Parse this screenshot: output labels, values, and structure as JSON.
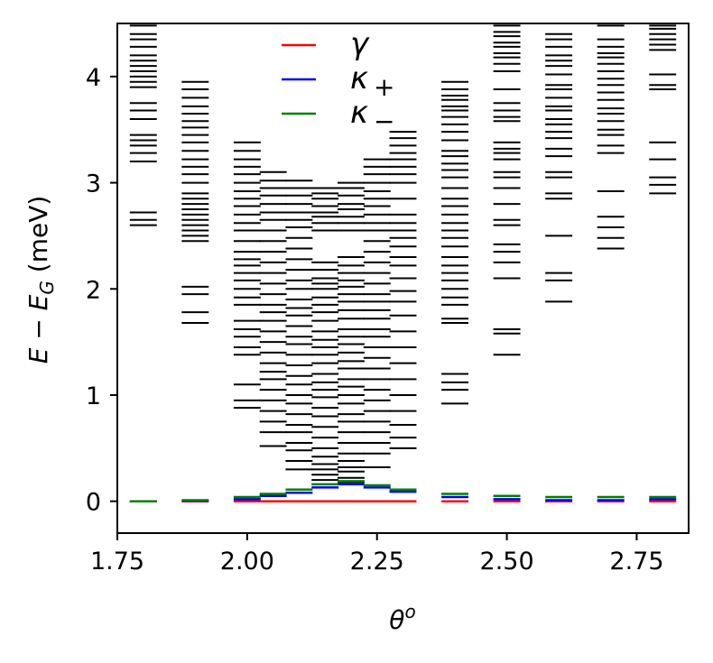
{
  "chart_data": {
    "type": "line",
    "title": "",
    "xlabel": {
      "main": "θ",
      "sup": "o"
    },
    "ylabel": {
      "E": "E",
      "minus": " − ",
      "EG": "E",
      "sub": "G",
      "unit": " (meV)"
    },
    "xlim": [
      1.75,
      2.85
    ],
    "ylim": [
      -0.3,
      4.5
    ],
    "xticks": [
      "1.75",
      "2.00",
      "2.25",
      "2.50",
      "2.75"
    ],
    "xtick_values": [
      1.75,
      2.0,
      2.25,
      2.5,
      2.75
    ],
    "yticks": [
      "0",
      "1",
      "2",
      "3",
      "4"
    ],
    "ytick_values": [
      0,
      1,
      2,
      3,
      4
    ],
    "grid": false,
    "legend_position": "top-center",
    "legend": [
      {
        "name": "γ",
        "sub": "",
        "color": "#ff0000"
      },
      {
        "name": "κ",
        "sub": "+",
        "color": "#0000ff"
      },
      {
        "name": "κ",
        "sub": "−",
        "color": "#008000"
      }
    ],
    "spectrum_color": "#000000",
    "spectrum": [
      {
        "theta": 1.8,
        "energies": [
          2.6,
          2.65,
          2.72,
          3.2,
          3.28,
          3.35,
          3.4,
          3.45,
          3.6,
          3.68,
          3.75,
          3.9,
          3.95,
          4.0,
          4.05,
          4.1,
          4.15,
          4.2,
          4.28,
          4.35,
          4.4,
          4.48
        ]
      },
      {
        "theta": 1.9,
        "energies": [
          1.68,
          1.78,
          1.95,
          2.02,
          2.45,
          2.5,
          2.55,
          2.6,
          2.65,
          2.7,
          2.75,
          2.8,
          2.85,
          2.9,
          3.0,
          3.08,
          3.15,
          3.22,
          3.3,
          3.38,
          3.45,
          3.52,
          3.58,
          3.65,
          3.72,
          3.8,
          3.88,
          3.95
        ]
      },
      {
        "theta": 2.0,
        "energies": [
          0.88,
          0.95,
          1.1,
          1.38,
          1.45,
          1.55,
          1.62,
          1.7,
          1.85,
          1.92,
          2.0,
          2.08,
          2.15,
          2.22,
          2.28,
          2.35,
          2.45,
          2.55,
          2.62,
          2.7,
          2.78,
          2.85,
          2.92,
          3.0,
          3.08,
          3.15,
          3.22,
          3.3,
          3.38
        ]
      },
      {
        "theta": 2.05,
        "energies": [
          0.52,
          0.65,
          0.75,
          0.85,
          0.95,
          1.05,
          1.15,
          1.22,
          1.3,
          1.4,
          1.5,
          1.6,
          1.7,
          1.78,
          1.85,
          1.95,
          2.05,
          2.15,
          2.25,
          2.35,
          2.45,
          2.55,
          2.65,
          2.72,
          2.8,
          2.88,
          2.95,
          3.02,
          3.1
        ]
      },
      {
        "theta": 2.1,
        "energies": [
          0.3,
          0.38,
          0.48,
          0.55,
          0.65,
          0.72,
          0.82,
          0.92,
          1.0,
          1.1,
          1.18,
          1.28,
          1.38,
          1.48,
          1.55,
          1.65,
          1.75,
          1.82,
          1.9,
          2.0,
          2.08,
          2.18,
          2.28,
          2.38,
          2.48,
          2.58,
          2.65,
          2.72,
          2.8,
          2.88,
          2.95,
          3.02
        ]
      },
      {
        "theta": 2.15,
        "energies": [
          0.2,
          0.25,
          0.3,
          0.35,
          0.42,
          0.5,
          0.6,
          0.7,
          0.8,
          0.88,
          0.98,
          1.05,
          1.12,
          1.2,
          1.3,
          1.38,
          1.45,
          1.52,
          1.6,
          1.7,
          1.78,
          1.85,
          1.92,
          2.0,
          2.05,
          2.1,
          2.18,
          2.25,
          2.55,
          2.62,
          2.68,
          2.72,
          2.78,
          2.85,
          2.9,
          2.95
        ]
      },
      {
        "theta": 2.2,
        "energies": [
          0.18,
          0.22,
          0.28,
          0.32,
          0.38,
          0.45,
          0.55,
          0.65,
          0.75,
          0.82,
          0.92,
          1.0,
          1.08,
          1.15,
          1.25,
          1.32,
          1.4,
          1.48,
          1.55,
          1.62,
          1.72,
          1.8,
          1.88,
          1.95,
          2.02,
          2.08,
          2.15,
          2.22,
          2.3,
          2.55,
          2.62,
          2.68,
          2.75,
          2.8,
          2.88,
          2.95,
          3.0
        ]
      },
      {
        "theta": 2.25,
        "energies": [
          0.32,
          0.45,
          0.55,
          0.65,
          0.75,
          0.85,
          0.95,
          1.05,
          1.15,
          1.25,
          1.35,
          1.45,
          1.55,
          1.62,
          1.72,
          1.8,
          1.88,
          1.95,
          2.05,
          2.15,
          2.25,
          2.35,
          2.45,
          2.55,
          2.62,
          2.7,
          2.78,
          2.85,
          2.92,
          3.0,
          3.08,
          3.15,
          3.22
        ]
      },
      {
        "theta": 2.3,
        "energies": [
          0.5,
          0.6,
          0.72,
          0.85,
          1.0,
          1.15,
          1.3,
          1.45,
          1.6,
          1.75,
          1.88,
          1.98,
          2.1,
          2.22,
          2.3,
          2.4,
          2.48,
          2.55,
          2.62,
          2.7,
          2.85,
          3.0,
          3.08,
          3.15,
          3.22,
          3.28,
          3.35,
          3.42,
          3.48
        ]
      },
      {
        "theta": 2.4,
        "energies": [
          0.92,
          1.05,
          1.12,
          1.2,
          1.68,
          1.72,
          1.85,
          1.92,
          2.0,
          2.08,
          2.15,
          2.22,
          2.3,
          2.4,
          2.48,
          2.55,
          2.62,
          2.7,
          2.78,
          2.85,
          2.95,
          3.05,
          3.12,
          3.18,
          3.25,
          3.3,
          3.4,
          3.48,
          3.55,
          3.62,
          3.68,
          3.72,
          3.78,
          3.82,
          3.88,
          3.95
        ]
      },
      {
        "theta": 2.5,
        "energies": [
          1.38,
          1.58,
          1.62,
          2.1,
          2.25,
          2.35,
          2.42,
          2.6,
          2.65,
          2.8,
          2.95,
          3.05,
          3.1,
          3.22,
          3.28,
          3.32,
          3.38,
          3.58,
          3.62,
          3.68,
          3.75,
          3.88,
          4.05,
          4.12,
          4.18,
          4.22,
          4.28,
          4.32,
          4.38,
          4.42,
          4.48
        ]
      },
      {
        "theta": 2.6,
        "energies": [
          1.88,
          2.08,
          2.15,
          2.5,
          2.85,
          2.9,
          3.05,
          3.1,
          3.25,
          3.32,
          3.42,
          3.48,
          3.55,
          3.6,
          3.68,
          3.72,
          3.8,
          3.88,
          3.92,
          4.02,
          4.1,
          4.15,
          4.2,
          4.28,
          4.35,
          4.4
        ]
      },
      {
        "theta": 2.7,
        "energies": [
          2.38,
          2.48,
          2.58,
          2.68,
          2.92,
          3.28,
          3.35,
          3.45,
          3.5,
          3.58,
          3.65,
          3.7,
          3.78,
          3.85,
          3.92,
          3.98,
          4.05,
          4.12,
          4.18,
          4.22,
          4.28,
          4.35,
          4.48
        ]
      },
      {
        "theta": 2.8,
        "energies": [
          2.9,
          2.98,
          3.05,
          3.22,
          3.38,
          3.88,
          3.92,
          4.02,
          4.25,
          4.3,
          4.35,
          4.4,
          4.45,
          4.48
        ]
      }
    ],
    "series": [
      {
        "name": "γ",
        "color": "#ff0000",
        "segments": [
          {
            "theta": 1.8,
            "value": 0.0
          },
          {
            "theta": 1.9,
            "value": 0.0
          },
          {
            "theta": 2.0,
            "value": 0.0
          },
          {
            "theta": 2.05,
            "value": 0.0
          },
          {
            "theta": 2.1,
            "value": 0.0
          },
          {
            "theta": 2.15,
            "value": 0.0
          },
          {
            "theta": 2.2,
            "value": 0.0
          },
          {
            "theta": 2.25,
            "value": 0.0
          },
          {
            "theta": 2.3,
            "value": 0.0
          },
          {
            "theta": 2.4,
            "value": 0.0
          },
          {
            "theta": 2.5,
            "value": 0.0
          },
          {
            "theta": 2.6,
            "value": 0.0
          },
          {
            "theta": 2.7,
            "value": 0.0
          },
          {
            "theta": 2.8,
            "value": 0.0
          }
        ]
      },
      {
        "name": "κ+",
        "color": "#0000ff",
        "segments": [
          {
            "theta": 1.8,
            "value": 0.0
          },
          {
            "theta": 1.9,
            "value": 0.005
          },
          {
            "theta": 2.0,
            "value": 0.02
          },
          {
            "theta": 2.05,
            "value": 0.05
          },
          {
            "theta": 2.1,
            "value": 0.08
          },
          {
            "theta": 2.15,
            "value": 0.13
          },
          {
            "theta": 2.2,
            "value": 0.16
          },
          {
            "theta": 2.25,
            "value": 0.13
          },
          {
            "theta": 2.3,
            "value": 0.09
          },
          {
            "theta": 2.4,
            "value": 0.04
          },
          {
            "theta": 2.5,
            "value": 0.02
          },
          {
            "theta": 2.6,
            "value": 0.01
          },
          {
            "theta": 2.7,
            "value": 0.01
          },
          {
            "theta": 2.8,
            "value": 0.02
          }
        ]
      },
      {
        "name": "κ−",
        "color": "#008000",
        "segments": [
          {
            "theta": 1.8,
            "value": 0.0
          },
          {
            "theta": 1.9,
            "value": 0.01
          },
          {
            "theta": 2.0,
            "value": 0.04
          },
          {
            "theta": 2.05,
            "value": 0.07
          },
          {
            "theta": 2.1,
            "value": 0.11
          },
          {
            "theta": 2.15,
            "value": 0.16
          },
          {
            "theta": 2.2,
            "value": 0.19
          },
          {
            "theta": 2.25,
            "value": 0.15
          },
          {
            "theta": 2.3,
            "value": 0.11
          },
          {
            "theta": 2.4,
            "value": 0.07
          },
          {
            "theta": 2.5,
            "value": 0.05
          },
          {
            "theta": 2.6,
            "value": 0.04
          },
          {
            "theta": 2.7,
            "value": 0.04
          },
          {
            "theta": 2.8,
            "value": 0.04
          }
        ]
      }
    ]
  }
}
